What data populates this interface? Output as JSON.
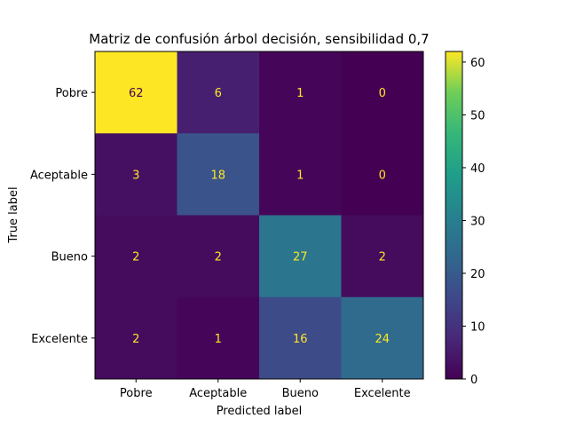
{
  "chart_data": {
    "type": "heatmap",
    "title": "Matriz de confusión árbol decisión, sensibilidad 0,7",
    "xlabel": "Predicted label",
    "ylabel": "True label",
    "x_categories": [
      "Pobre",
      "Aceptable",
      "Bueno",
      "Excelente"
    ],
    "y_categories": [
      "Pobre",
      "Aceptable",
      "Bueno",
      "Excelente"
    ],
    "values": [
      [
        62,
        6,
        1,
        0
      ],
      [
        3,
        18,
        1,
        0
      ],
      [
        2,
        2,
        27,
        2
      ],
      [
        2,
        1,
        16,
        24
      ]
    ],
    "colormap": "viridis",
    "colorbar": {
      "min": 0,
      "max": 62,
      "ticks": [
        0,
        10,
        20,
        30,
        40,
        50,
        60
      ]
    },
    "grid": false
  }
}
